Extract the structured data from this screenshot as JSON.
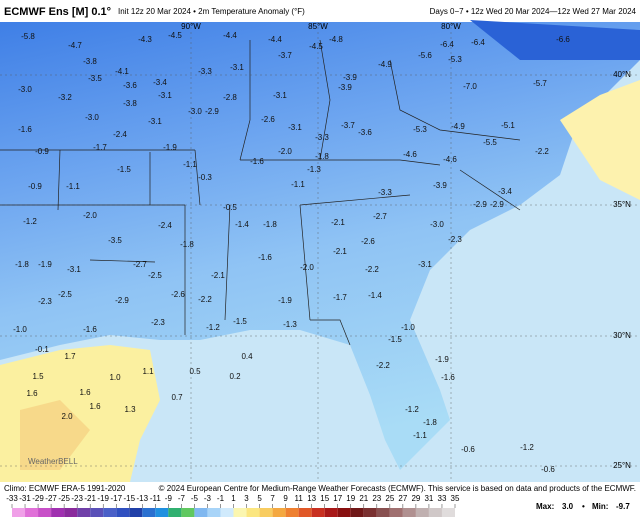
{
  "header": {
    "title": "ECMWF Ens [M] 0.1°",
    "subtitle": "Init 12z 20 Mar 2024 • 2m Temperature Anomaly (°F)",
    "valid": "Days 0−7 • 12z Wed 20 Mar 2024—12z Wed 27 Mar 2024"
  },
  "map": {
    "lat_labels": [
      "40°N",
      "35°N",
      "30°N",
      "25°N"
    ],
    "lon_labels": [
      "90°W",
      "85°W",
      "80°W"
    ],
    "values": [
      "-5.8",
      "-4.7",
      "-4.3",
      "-4.5",
      "-4.4",
      "-4.4",
      "-4.5",
      "-4.8",
      "-6.4",
      "-6.4",
      "-6.6",
      "-3.8",
      "-4.1",
      "-3.3",
      "-3.1",
      "-3.7",
      "-3.9",
      "-4.9",
      "-5.6",
      "-5.3",
      "-3.5",
      "-3.6",
      "-3.4",
      "-3.0",
      "-3.2",
      "-3.8",
      "-3.1",
      "-2.8",
      "-3.1",
      "-3.9",
      "-7.0",
      "-5.7",
      "-3.0",
      "-3.1",
      "-3.0",
      "-2.9",
      "-2.6",
      "-3.1",
      "-3.7",
      "-5.3",
      "-4.9",
      "-5.1",
      "-1.6",
      "-2.4",
      "-3.3",
      "-3.6",
      "-1.7",
      "-1.9",
      "-2.0",
      "-1.8",
      "-4.6",
      "-5.5",
      "-2.2",
      "-0.9",
      "-1.5",
      "-1.6",
      "-1.1",
      "-1.3",
      "-4.6",
      "-0.9",
      "-1.1",
      "-0.3",
      "-1.1",
      "-3.3",
      "-3.9",
      "-3.4",
      "-2.9",
      "-2.9",
      "-0.5",
      "-1.4",
      "-1.8",
      "-2.1",
      "-2.7",
      "-3.0",
      "-2.3",
      "-2.0",
      "-3.5",
      "-2.4",
      "-1.8",
      "-2.1",
      "-2.6",
      "-1.2",
      "-1.8",
      "-1.9",
      "-3.1",
      "-2.7",
      "-2.5",
      "-2.1",
      "-1.6",
      "-2.0",
      "-2.2",
      "-3.1",
      "-2.3",
      "-2.5",
      "-2.9",
      "-2.6",
      "-2.2",
      "-1.9",
      "-1.7",
      "-1.4",
      "-1.0",
      "-1.6",
      "-2.3",
      "-1.2",
      "-1.5",
      "-1.3",
      "-1.0",
      "-1.5",
      "-0.1",
      "1.7",
      "0.4",
      "0.5",
      "1.0",
      "1.1",
      "1.5",
      "0.2",
      "1.6",
      "1.6",
      "0.7",
      "1.6",
      "1.3",
      "2.0",
      "-1.2",
      "-1.8",
      "-1.1",
      "-0.6",
      "-1.2",
      "-0.6",
      "-2.2",
      "-1.9",
      "-1.6"
    ],
    "watermark": "WeatherBELL"
  },
  "footer": {
    "climo": "Climo: ECMWF ERA-5 1991-2020",
    "copyright": "© 2024 European Centre for Medium-Range Weather Forecasts (ECMWF). This service is based on data and products of the ECMWF.",
    "colorbar_ticks": [
      -33,
      -31,
      -29,
      -27,
      -25,
      -23,
      -21,
      -19,
      -17,
      -15,
      -13,
      -11,
      -9,
      -7,
      -5,
      -3,
      -1,
      1,
      3,
      5,
      7,
      9,
      11,
      13,
      15,
      17,
      19,
      21,
      23,
      25,
      27,
      29,
      31,
      33,
      35
    ],
    "max_label": "Max:",
    "max": "3.0",
    "separator": "•",
    "min_label": "Min:",
    "min": "-9.7"
  }
}
